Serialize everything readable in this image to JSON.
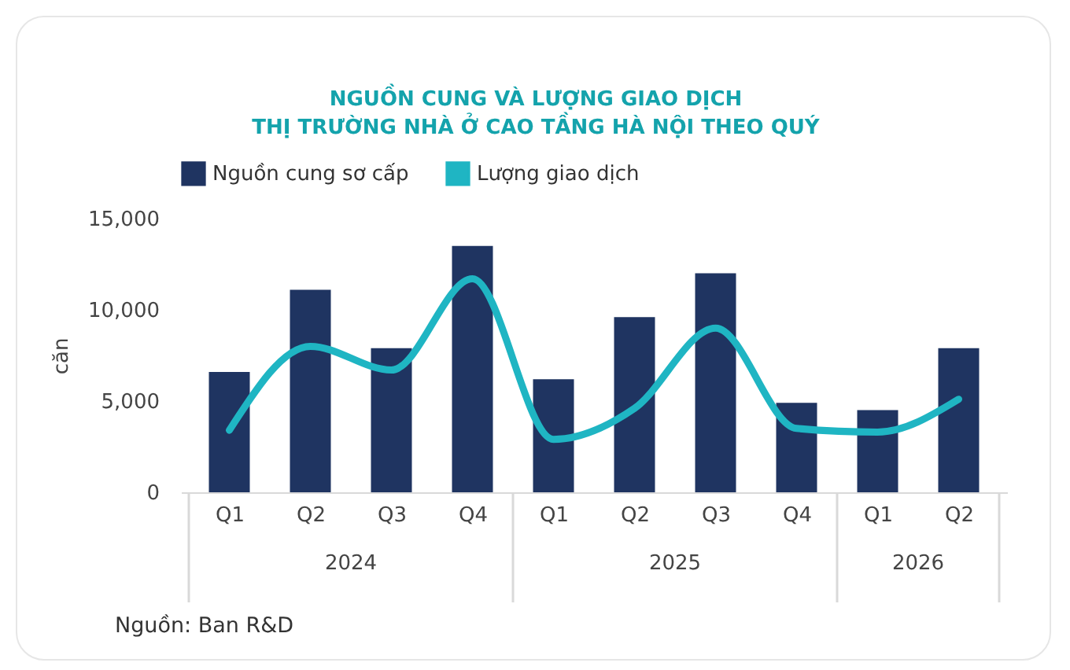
{
  "chart_data": {
    "type": "bar",
    "title": "NGUỒN CUNG VÀ LƯỢNG GIAO DỊCH\nTHỊ TRƯỜNG NHÀ Ở CAO TẦNG HÀ NỘI THEO QUÝ",
    "ylabel": "căn",
    "categories": [
      "Q1",
      "Q2",
      "Q3",
      "Q4",
      "Q1",
      "Q2",
      "Q3",
      "Q4",
      "Q1",
      "Q2"
    ],
    "series": [
      {
        "name": "Nguồn cung sơ cấp",
        "color": "#1f3461",
        "values": [
          6600,
          11100,
          7900,
          13500,
          6200,
          9600,
          12000,
          4900,
          4500,
          7900
        ]
      },
      {
        "name": "Lượng giao dịch",
        "type": "line",
        "color": "#1fb5c3",
        "values": [
          3400,
          8000,
          6700,
          11700,
          2900,
          4600,
          9000,
          3500,
          3300,
          5100
        ]
      }
    ],
    "ylim": [
      0,
      15000
    ],
    "yticks": [
      0,
      {
        "value": 5000,
        "label": "5,000"
      },
      {
        "value": 10000,
        "label": "10,000"
      },
      {
        "value": 15000,
        "label": "15,000"
      }
    ],
    "grid": false,
    "legend": "top",
    "annotations": [
      "2024",
      "2025",
      "2026",
      "Nguồn: Ban R&D"
    ]
  }
}
